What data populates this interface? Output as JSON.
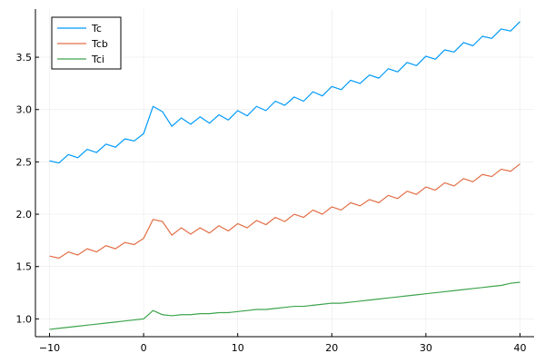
{
  "chart_data": {
    "type": "line",
    "title": "",
    "xlabel": "",
    "ylabel": "",
    "xlim": [
      -11.5,
      41.5
    ],
    "ylim": [
      0.83,
      3.96
    ],
    "xticks": [
      -10,
      0,
      10,
      20,
      30,
      40
    ],
    "xtick_labels": [
      "−10",
      "0",
      "10",
      "20",
      "30",
      "40"
    ],
    "yticks": [
      1.0,
      1.5,
      2.0,
      2.5,
      3.0,
      3.5
    ],
    "ytick_labels": [
      "1.0",
      "1.5",
      "2.0",
      "2.5",
      "3.0",
      "3.5"
    ],
    "grid": true,
    "legend_position": "top-left",
    "x": [
      -10,
      -9,
      -8,
      -7,
      -6,
      -5,
      -4,
      -3,
      -2,
      -1,
      0,
      1,
      2,
      3,
      4,
      5,
      6,
      7,
      8,
      9,
      10,
      11,
      12,
      13,
      14,
      15,
      16,
      17,
      18,
      19,
      20,
      21,
      22,
      23,
      24,
      25,
      26,
      27,
      28,
      29,
      30,
      31,
      32,
      33,
      34,
      35,
      36,
      37,
      38,
      39,
      40
    ],
    "series": [
      {
        "name": "Tc",
        "color": "#009af9",
        "values": [
          2.51,
          2.49,
          2.57,
          2.54,
          2.62,
          2.59,
          2.67,
          2.64,
          2.72,
          2.7,
          2.77,
          3.03,
          2.98,
          2.84,
          2.92,
          2.86,
          2.93,
          2.87,
          2.95,
          2.9,
          2.99,
          2.94,
          3.03,
          2.99,
          3.08,
          3.04,
          3.12,
          3.08,
          3.17,
          3.13,
          3.22,
          3.19,
          3.28,
          3.25,
          3.33,
          3.3,
          3.39,
          3.36,
          3.45,
          3.42,
          3.51,
          3.48,
          3.57,
          3.55,
          3.64,
          3.61,
          3.7,
          3.68,
          3.77,
          3.75,
          3.84
        ]
      },
      {
        "name": "Tcb",
        "color": "#e26f46",
        "values": [
          1.6,
          1.58,
          1.64,
          1.61,
          1.67,
          1.64,
          1.7,
          1.67,
          1.73,
          1.71,
          1.77,
          1.95,
          1.93,
          1.8,
          1.87,
          1.81,
          1.87,
          1.82,
          1.89,
          1.84,
          1.91,
          1.87,
          1.94,
          1.9,
          1.97,
          1.93,
          2.0,
          1.97,
          2.04,
          2.0,
          2.07,
          2.04,
          2.11,
          2.08,
          2.14,
          2.11,
          2.18,
          2.15,
          2.22,
          2.19,
          2.26,
          2.23,
          2.3,
          2.27,
          2.34,
          2.31,
          2.38,
          2.36,
          2.43,
          2.41,
          2.48
        ]
      },
      {
        "name": "Tci",
        "color": "#3da44d",
        "values": [
          0.9,
          0.91,
          0.92,
          0.93,
          0.94,
          0.95,
          0.96,
          0.97,
          0.98,
          0.99,
          1.0,
          1.08,
          1.04,
          1.03,
          1.04,
          1.04,
          1.05,
          1.05,
          1.06,
          1.06,
          1.07,
          1.08,
          1.09,
          1.09,
          1.1,
          1.11,
          1.12,
          1.12,
          1.13,
          1.14,
          1.15,
          1.15,
          1.16,
          1.17,
          1.18,
          1.19,
          1.2,
          1.21,
          1.22,
          1.23,
          1.24,
          1.25,
          1.26,
          1.27,
          1.28,
          1.29,
          1.3,
          1.31,
          1.32,
          1.34,
          1.35
        ]
      }
    ]
  }
}
